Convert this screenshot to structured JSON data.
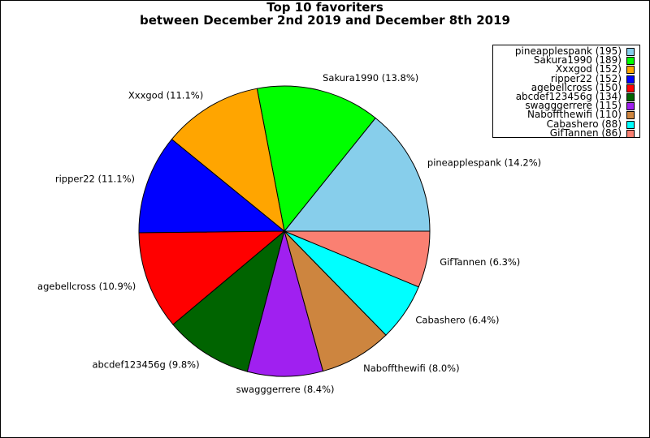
{
  "chart_data": {
    "type": "pie",
    "title_lines": [
      "Top 10 favoriters",
      "between December 2nd 2019 and December 8th 2019"
    ],
    "slices": [
      {
        "name": "pineapplespank",
        "value": 195,
        "label": "pineapplespank (14.2%)",
        "legend": "pineapplespank (195)",
        "color": "#87ceeb"
      },
      {
        "name": "Sakura1990",
        "value": 189,
        "label": "Sakura1990 (13.8%)",
        "legend": "Sakura1990 (189)",
        "color": "#00ff00"
      },
      {
        "name": "Xxxgod",
        "value": 152,
        "label": "Xxxgod (11.1%)",
        "legend": "Xxxgod (152)",
        "color": "#ffa500"
      },
      {
        "name": "ripper22",
        "value": 152,
        "label": "ripper22 (11.1%)",
        "legend": "ripper22 (152)",
        "color": "#0000ff"
      },
      {
        "name": "agebellcross",
        "value": 150,
        "label": "agebellcross (10.9%)",
        "legend": "agebellcross (150)",
        "color": "#ff0000"
      },
      {
        "name": "abcdef123456g",
        "value": 134,
        "label": "abcdef123456g (9.8%)",
        "legend": "abcdef123456g (134)",
        "color": "#006400"
      },
      {
        "name": "swagggerrere",
        "value": 115,
        "label": "swagggerrere (8.4%)",
        "legend": "swagggerrere (115)",
        "color": "#a020f0"
      },
      {
        "name": "Naboffthewifi",
        "value": 110,
        "label": "Naboffthewifi (8.0%)",
        "legend": "Naboffthewifi (110)",
        "color": "#cd853f"
      },
      {
        "name": "Cabashero",
        "value": 88,
        "label": "Cabashero (6.4%)",
        "legend": "Cabashero (88)",
        "color": "#00ffff"
      },
      {
        "name": "GifTannen",
        "value": 86,
        "label": "GifTannen (6.3%)",
        "legend": "GifTannen (86)",
        "color": "#fa8072"
      }
    ],
    "start_angle_deg": 0,
    "direction": "counterclockwise",
    "legend_position": "top-right"
  }
}
